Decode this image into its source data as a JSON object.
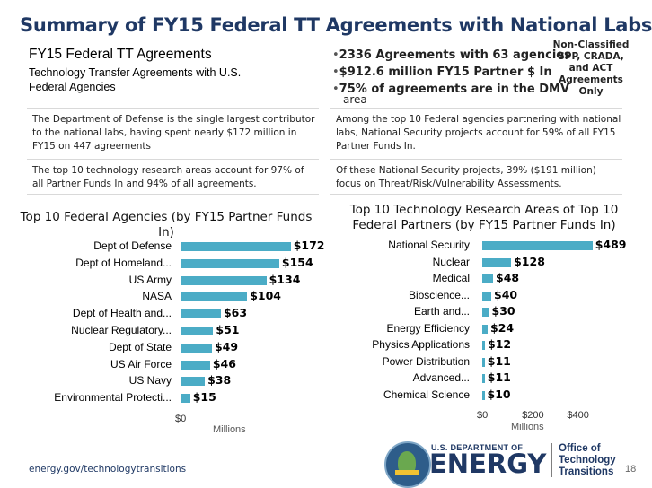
{
  "slide": {
    "title": "Summary of FY15 Federal TT Agreements with National Labs",
    "page_number": "18",
    "footer_url": "energy.gov/technologytransitions"
  },
  "header_box": {
    "title": "FY15 Federal TT Agreements",
    "subtitle": "Technology Transfer Agreements with U.S. Federal Agencies"
  },
  "bullets": [
    "2336 Agreements with 63 agencies",
    "$912.6 million FY15 Partner $ In",
    "75% of agreements are in the DMV",
    "area"
  ],
  "callout": {
    "line1": "Non-Classified",
    "line2": "SPP, CRADA,",
    "line3": "and ACT",
    "line4": "Agreements",
    "line5": "Only"
  },
  "notes": {
    "left_1": "The Department of Defense is the single largest contributor to the national labs, having spent nearly $172 million in FY15 on 447 agreements",
    "left_2": "The top 10 technology research areas account for 97% of all Partner Funds In and 94% of all agreements.",
    "right_1": "Among the top 10 Federal agencies partnering with national labs, National Security projects account for 59% of all FY15 Partner Funds In.",
    "right_2": "Of these National Security projects, 39% ($191 million) focus on Threat/Risk/Vulnerability Assessments."
  },
  "logo": {
    "dept": "U.S. DEPARTMENT OF",
    "energy": "ENERGY",
    "office_1": "Office of",
    "office_2": "Technology",
    "office_3": "Transitions"
  },
  "chart_data": [
    {
      "type": "bar",
      "orientation": "horizontal",
      "title": "Top 10 Federal Agencies (by FY15 Partner Funds In)",
      "categories": [
        "Dept of Defense",
        "Dept of Homeland...",
        "US Army",
        "NASA",
        "Dept of Health and...",
        "Nuclear Regulatory...",
        "Dept of State",
        "US Air Force",
        "US Navy",
        "Environmental Protecti..."
      ],
      "values": [
        172,
        154,
        134,
        104,
        63,
        51,
        49,
        46,
        38,
        15
      ],
      "value_labels": [
        "$172",
        "$154",
        "$134",
        "$104",
        "$63",
        "$51",
        "$49",
        "$46",
        "$38",
        "$15"
      ],
      "x_ticks": [
        "$0"
      ],
      "xlabel": "Millions",
      "xlim": [
        0,
        185
      ]
    },
    {
      "type": "bar",
      "orientation": "horizontal",
      "title": "Top 10 Technology Research Areas of Top 10 Federal Partners (by FY15 Partner Funds In)",
      "categories": [
        "National Security",
        "Nuclear",
        "Medical",
        "Bioscience...",
        "Earth and...",
        "Energy Efficiency",
        "Physics Applications",
        "Power Distribution",
        "Advanced...",
        "Chemical Science"
      ],
      "values": [
        489,
        128,
        48,
        40,
        30,
        24,
        12,
        11,
        11,
        10
      ],
      "value_labels": [
        "$489",
        "$128",
        "$48",
        "$40",
        "$30",
        "$24",
        "$12",
        "$11",
        "$11",
        "$10"
      ],
      "x_ticks": [
        "$0",
        "$200",
        "$400"
      ],
      "xlabel": "Millions",
      "xlim": [
        0,
        530
      ]
    }
  ]
}
